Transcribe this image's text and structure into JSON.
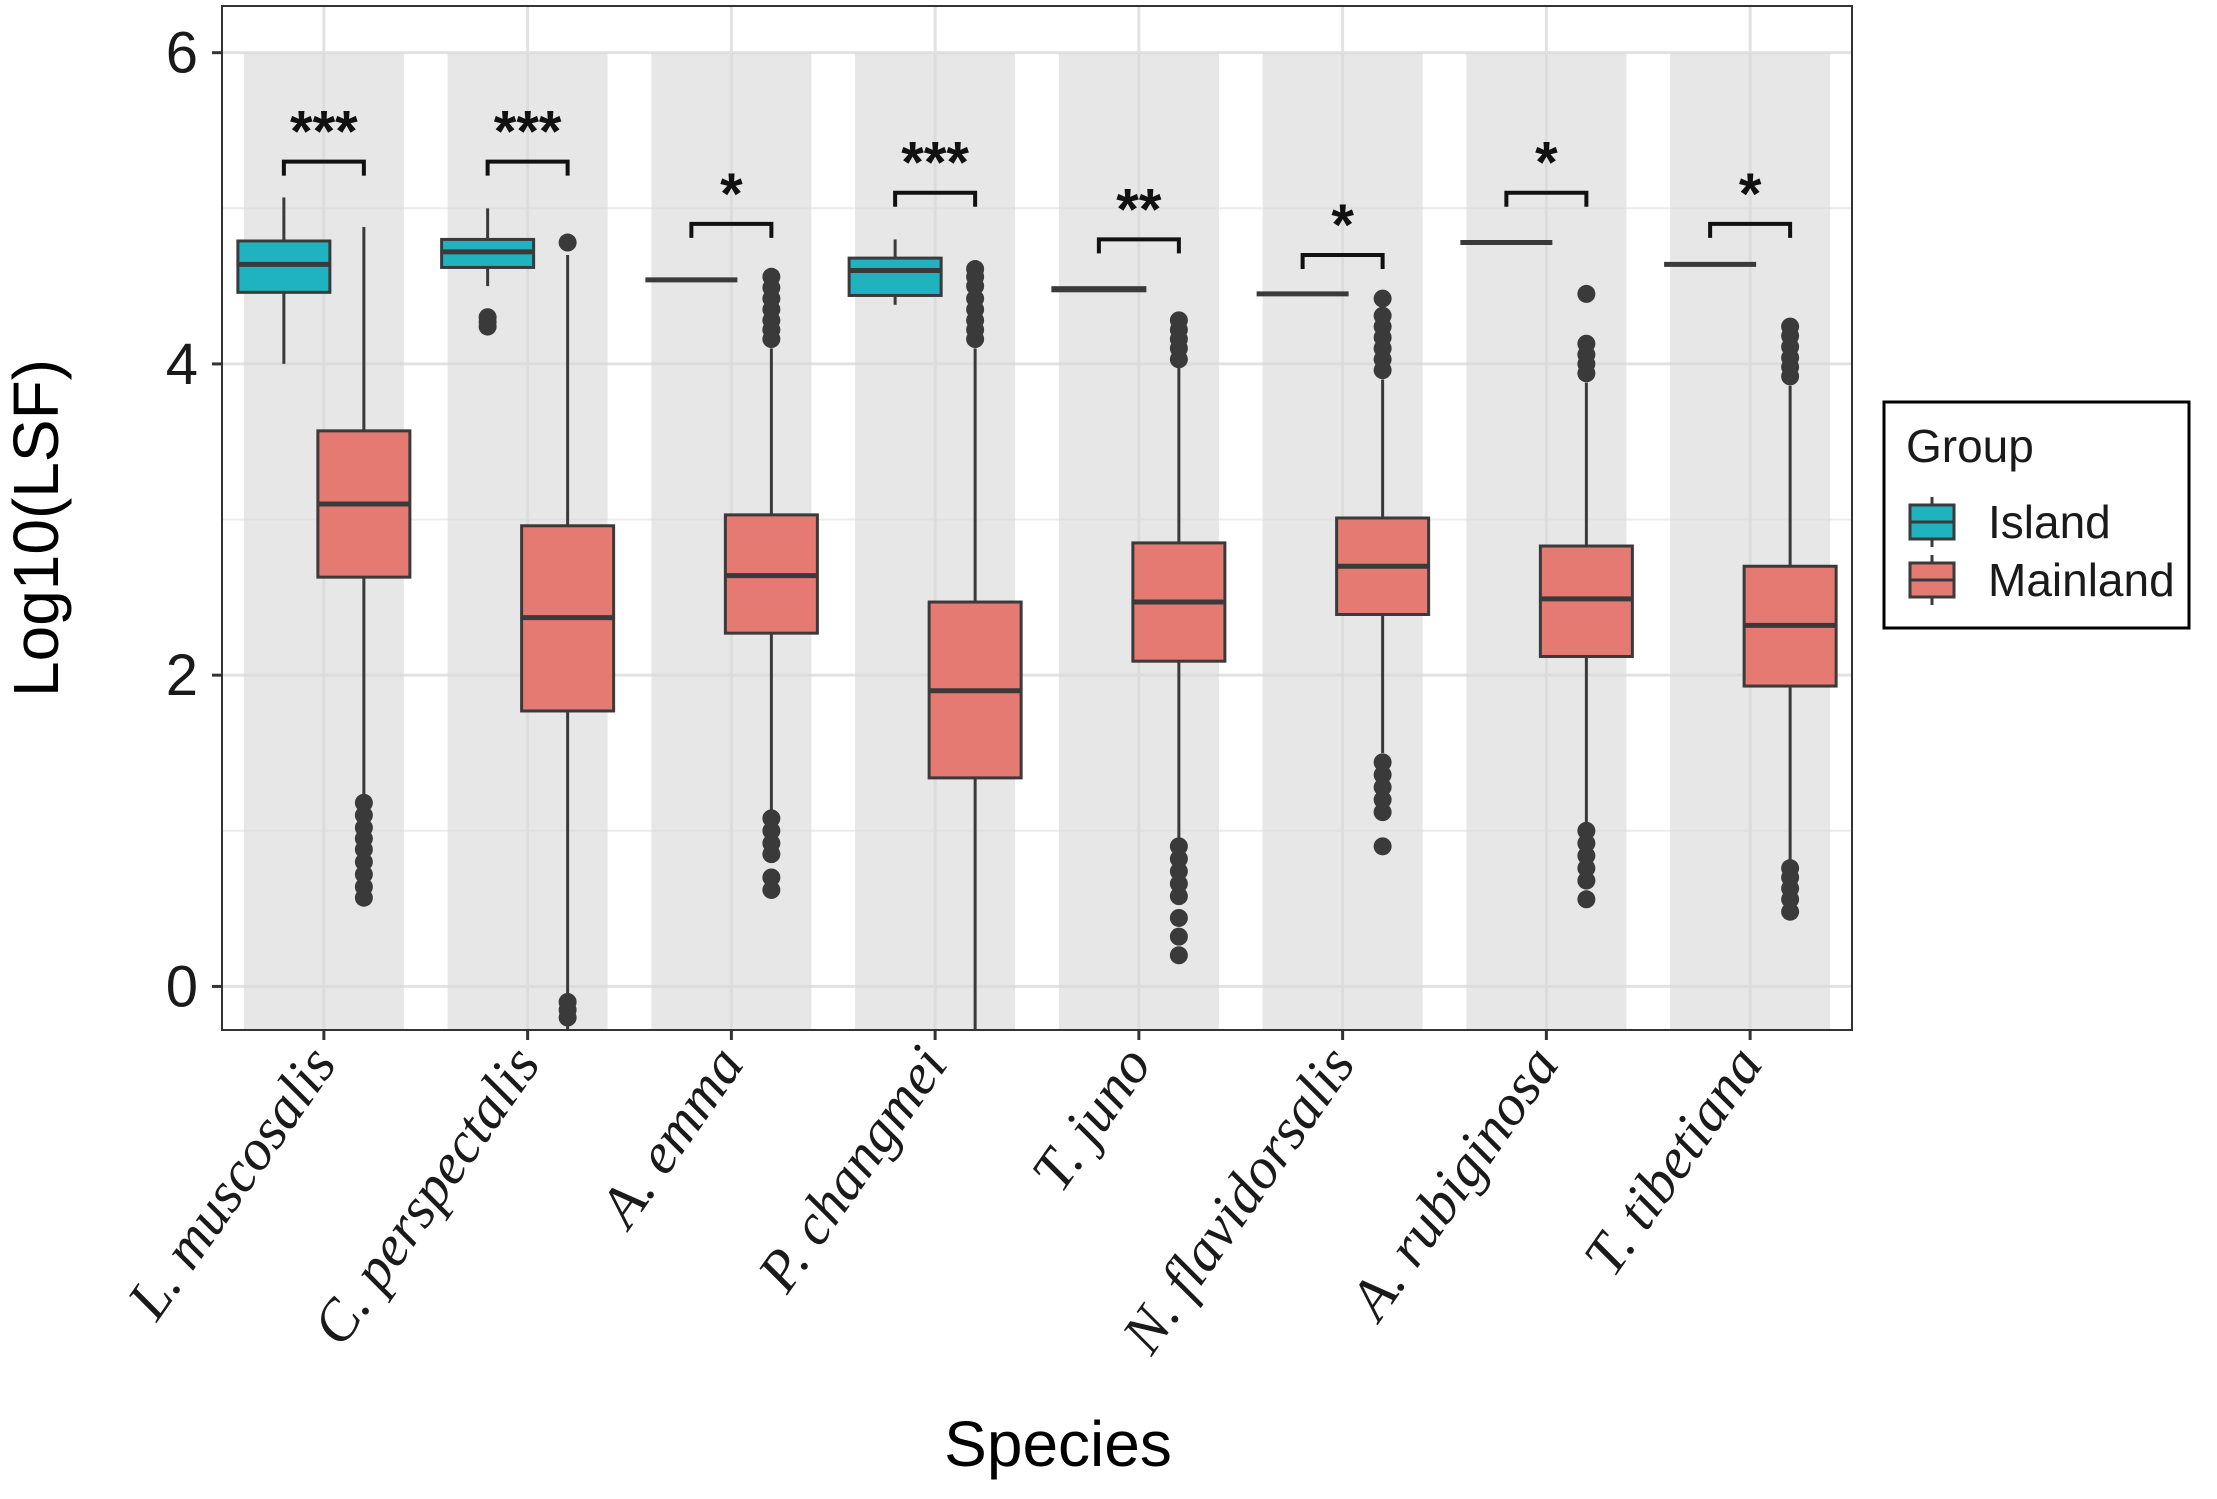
{
  "chart_data": {
    "type": "boxplot",
    "xlabel": "Species",
    "ylabel": "Log10(LSF)",
    "ylim": [
      -0.28,
      6.3
    ],
    "yticks": [
      0,
      2,
      4,
      6
    ],
    "ytick_labels": [
      "0",
      "2",
      "4",
      "6"
    ],
    "grid": true,
    "band_top": 6.0,
    "legend": {
      "title": "Group",
      "position": "right",
      "entries": [
        {
          "key": "island",
          "label": "Island",
          "color": "#1fb3c0"
        },
        {
          "key": "mainland",
          "label": "Mainland",
          "color": "#e57a72"
        }
      ]
    },
    "categories": [
      "L. muscosalis",
      "C. perspectalis",
      "A. emma",
      "P. changmei",
      "T. juno",
      "N. flavidorsalis",
      "A. rubiginosa",
      "T. tibetiana"
    ],
    "series": [
      {
        "name": "Island",
        "color": "#1fb3c0",
        "boxes": [
          {
            "q1": 4.46,
            "median": 4.64,
            "q3": 4.79,
            "whisker_low": 4.0,
            "whisker_high": 5.07,
            "outliers": []
          },
          {
            "q1": 4.62,
            "median": 4.72,
            "q3": 4.8,
            "whisker_low": 4.5,
            "whisker_high": 5.0,
            "outliers": [
              4.24,
              4.27,
              4.3
            ]
          },
          {
            "q1": 4.54,
            "median": 4.54,
            "q3": 4.54,
            "whisker_low": 4.54,
            "whisker_high": 4.54,
            "outliers": []
          },
          {
            "q1": 4.44,
            "median": 4.6,
            "q3": 4.68,
            "whisker_low": 4.38,
            "whisker_high": 4.8,
            "outliers": []
          },
          {
            "q1": 4.47,
            "median": 4.48,
            "q3": 4.49,
            "whisker_low": 4.47,
            "whisker_high": 4.49,
            "outliers": []
          },
          {
            "q1": 4.45,
            "median": 4.45,
            "q3": 4.45,
            "whisker_low": 4.45,
            "whisker_high": 4.45,
            "outliers": []
          },
          {
            "q1": 4.78,
            "median": 4.78,
            "q3": 4.78,
            "whisker_low": 4.78,
            "whisker_high": 4.78,
            "outliers": []
          },
          {
            "q1": 4.64,
            "median": 4.64,
            "q3": 4.64,
            "whisker_low": 4.64,
            "whisker_high": 4.64,
            "outliers": []
          }
        ]
      },
      {
        "name": "Mainland",
        "color": "#e57a72",
        "boxes": [
          {
            "q1": 2.63,
            "median": 3.1,
            "q3": 3.57,
            "whisker_low": 1.22,
            "whisker_high": 4.88,
            "outliers": [
              1.18,
              1.1,
              1.02,
              0.95,
              0.88,
              0.8,
              0.72,
              0.64,
              0.57
            ]
          },
          {
            "q1": 1.77,
            "median": 2.37,
            "q3": 2.96,
            "whisker_low": -0.28,
            "whisker_high": 4.7,
            "outliers": [
              4.78,
              -0.1,
              -0.15,
              -0.2
            ]
          },
          {
            "q1": 2.27,
            "median": 2.64,
            "q3": 3.03,
            "whisker_low": 1.12,
            "whisker_high": 4.1,
            "outliers": [
              4.16,
              4.22,
              4.28,
              4.35,
              4.42,
              4.49,
              4.56,
              1.08,
              1.0,
              0.92,
              0.85,
              0.7,
              0.62
            ]
          },
          {
            "q1": 1.34,
            "median": 1.9,
            "q3": 2.47,
            "whisker_low": -0.28,
            "whisker_high": 4.1,
            "outliers": [
              4.16,
              4.22,
              4.28,
              4.35,
              4.42,
              4.5,
              4.56,
              4.61
            ]
          },
          {
            "q1": 2.09,
            "median": 2.47,
            "q3": 2.85,
            "whisker_low": 0.95,
            "whisker_high": 3.98,
            "outliers": [
              4.03,
              4.1,
              4.16,
              4.22,
              4.28,
              0.9,
              0.82,
              0.74,
              0.66,
              0.58,
              0.44,
              0.32,
              0.2
            ]
          },
          {
            "q1": 2.39,
            "median": 2.7,
            "q3": 3.01,
            "whisker_low": 1.5,
            "whisker_high": 3.9,
            "outliers": [
              3.96,
              4.03,
              4.1,
              4.17,
              4.24,
              4.31,
              4.42,
              1.44,
              1.36,
              1.28,
              1.2,
              1.12,
              0.9
            ]
          },
          {
            "q1": 2.12,
            "median": 2.49,
            "q3": 2.83,
            "whisker_low": 1.05,
            "whisker_high": 3.88,
            "outliers": [
              3.94,
              4.0,
              4.06,
              4.13,
              4.45,
              1.0,
              0.92,
              0.84,
              0.76,
              0.68,
              0.56
            ]
          },
          {
            "q1": 1.93,
            "median": 2.32,
            "q3": 2.7,
            "whisker_low": 0.8,
            "whisker_high": 3.86,
            "outliers": [
              3.92,
              3.98,
              4.04,
              4.11,
              4.18,
              4.24,
              0.76,
              0.7,
              0.63,
              0.56,
              0.48
            ]
          }
        ]
      }
    ],
    "significance": [
      {
        "label": "***",
        "y": 5.3
      },
      {
        "label": "***",
        "y": 5.3
      },
      {
        "label": "*",
        "y": 4.9
      },
      {
        "label": "***",
        "y": 5.1
      },
      {
        "label": "**",
        "y": 4.8
      },
      {
        "label": "*",
        "y": 4.7
      },
      {
        "label": "*",
        "y": 5.1
      },
      {
        "label": "*",
        "y": 4.9
      }
    ]
  }
}
